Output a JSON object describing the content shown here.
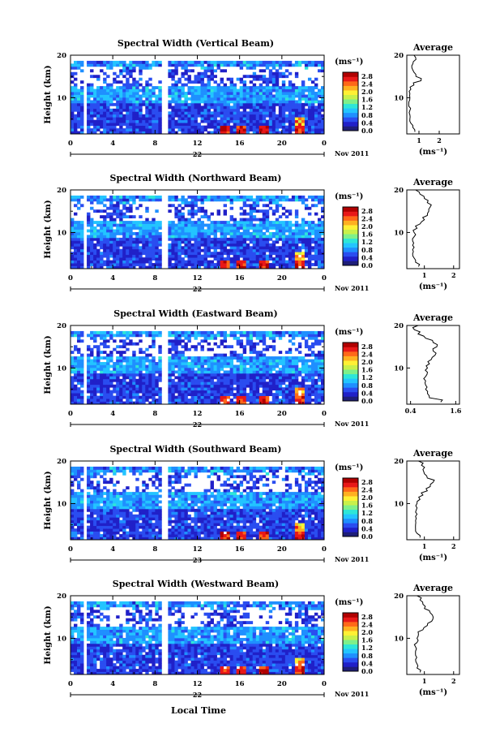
{
  "figure": {
    "month_label": "Nov 2011",
    "xlabel": "Local Time",
    "colorbar_unit": "(ms⁻¹)",
    "colorbar_ticks": [
      "2.8",
      "2.4",
      "2.0",
      "1.6",
      "1.2",
      "0.8",
      "0.4",
      "0.0"
    ],
    "colorbar_colors": [
      "#1e1e78",
      "#2020c8",
      "#2a4df0",
      "#1f8fff",
      "#23c4ff",
      "#2ee6d8",
      "#7ef08a",
      "#c8f04a",
      "#fff034",
      "#ffb020",
      "#ff6818",
      "#e81818",
      "#b00000"
    ]
  },
  "chart_data": [
    {
      "type": "heatmap",
      "title": "Spectral Width (Vertical Beam)",
      "ylabel": "Height (km)",
      "x_ticks": [
        "0",
        "4",
        "8",
        "12",
        "16",
        "20",
        "0"
      ],
      "y_ticks": [
        "20",
        "10"
      ],
      "date_label": "22",
      "xlim": [
        0,
        24
      ],
      "ylim": [
        1.5,
        20
      ],
      "colorbar_range": [
        0.0,
        3.0
      ],
      "average_profile": {
        "title": "Average",
        "xlabel": "(ms⁻¹)",
        "x_ticks": [
          "1",
          "2"
        ],
        "y_ticks": [
          "20",
          "10"
        ],
        "xlim": [
          0.4,
          3.0
        ],
        "height": [
          2,
          3,
          4,
          5,
          6,
          7,
          8,
          9,
          10,
          11,
          12,
          13,
          14,
          15,
          16,
          17,
          18,
          19,
          20
        ],
        "value": [
          0.8,
          0.7,
          0.6,
          0.55,
          0.55,
          0.55,
          0.5,
          0.5,
          0.55,
          0.55,
          0.6,
          0.75,
          1.1,
          0.85,
          0.75,
          0.65,
          0.7,
          0.85,
          0.75
        ]
      }
    },
    {
      "type": "heatmap",
      "title": "Spectral Width (Northward Beam)",
      "ylabel": "Height (km)",
      "x_ticks": [
        "0",
        "4",
        "8",
        "12",
        "16",
        "20",
        "0"
      ],
      "y_ticks": [
        "20",
        "10"
      ],
      "date_label": "22",
      "xlim": [
        0,
        24
      ],
      "ylim": [
        1.5,
        20
      ],
      "colorbar_range": [
        0.0,
        3.0
      ],
      "average_profile": {
        "title": "Average",
        "xlabel": "(ms⁻¹)",
        "x_ticks": [
          "1",
          "2"
        ],
        "y_ticks": [
          "20",
          "10"
        ],
        "xlim": [
          0.4,
          2.2
        ],
        "height": [
          2,
          3,
          4,
          5,
          6,
          7,
          8,
          9,
          10,
          11,
          12,
          13,
          14,
          15,
          16,
          17,
          18,
          19,
          20
        ],
        "value": [
          0.8,
          0.7,
          0.65,
          0.6,
          0.6,
          0.6,
          0.6,
          0.65,
          0.65,
          0.75,
          0.85,
          1.0,
          1.1,
          1.15,
          1.2,
          1.1,
          1.0,
          0.85,
          0.7
        ]
      }
    },
    {
      "type": "heatmap",
      "title": "Spectral Width (Eastward Beam)",
      "ylabel": "Height (km)",
      "x_ticks": [
        "0",
        "4",
        "8",
        "12",
        "16",
        "20",
        "0"
      ],
      "y_ticks": [
        "20",
        "10"
      ],
      "date_label": "22",
      "xlim": [
        0,
        24
      ],
      "ylim": [
        1.5,
        20
      ],
      "colorbar_range": [
        0.0,
        3.0
      ],
      "average_profile": {
        "title": "Average",
        "xlabel": "",
        "x_ticks": [
          "0.4",
          "1.6"
        ],
        "y_ticks": [
          "20",
          "10"
        ],
        "xlim": [
          0.3,
          1.7
        ],
        "height": [
          2,
          3,
          4,
          5,
          6,
          7,
          8,
          9,
          10,
          11,
          12,
          13,
          14,
          15,
          16,
          17,
          18,
          19,
          20
        ],
        "value": [
          1.2,
          0.9,
          0.85,
          0.8,
          0.8,
          0.8,
          0.8,
          0.85,
          0.85,
          0.9,
          0.95,
          1.05,
          1.0,
          1.1,
          1.0,
          0.8,
          0.6,
          0.5,
          0.6
        ]
      }
    },
    {
      "type": "heatmap",
      "title": "Spectral Width (Southward Beam)",
      "ylabel": "Height (km)",
      "x_ticks": [
        "0",
        "4",
        "8",
        "12",
        "16",
        "20",
        "0"
      ],
      "y_ticks": [
        "20",
        "10"
      ],
      "date_label": "23",
      "xlim": [
        0,
        24
      ],
      "ylim": [
        1.5,
        20
      ],
      "colorbar_range": [
        0.0,
        3.0
      ],
      "average_profile": {
        "title": "Average",
        "xlabel": "(ms⁻¹)",
        "x_ticks": [
          "1",
          "2"
        ],
        "y_ticks": [
          "20",
          "10"
        ],
        "xlim": [
          0.4,
          2.2
        ],
        "height": [
          2,
          3,
          4,
          5,
          6,
          7,
          8,
          9,
          10,
          11,
          12,
          13,
          14,
          15,
          16,
          17,
          18,
          19,
          20
        ],
        "value": [
          0.85,
          0.75,
          0.7,
          0.7,
          0.7,
          0.7,
          0.7,
          0.75,
          0.75,
          0.85,
          0.95,
          1.1,
          1.2,
          1.3,
          1.1,
          1.0,
          0.95,
          0.9,
          0.8
        ]
      }
    },
    {
      "type": "heatmap",
      "title": "Spectral Width (Westward Beam)",
      "ylabel": "Height (km)",
      "x_ticks": [
        "0",
        "4",
        "8",
        "12",
        "16",
        "20",
        "0"
      ],
      "y_ticks": [
        "20",
        "10"
      ],
      "date_label": "22",
      "xlim": [
        0,
        24
      ],
      "ylim": [
        1.5,
        20
      ],
      "colorbar_range": [
        0.0,
        3.0
      ],
      "average_profile": {
        "title": "Average",
        "xlabel": "(ms⁻¹)",
        "x_ticks": [
          "1",
          "2"
        ],
        "y_ticks": [
          "20",
          "10"
        ],
        "xlim": [
          0.4,
          2.2
        ],
        "height": [
          2,
          3,
          4,
          5,
          6,
          7,
          8,
          9,
          10,
          11,
          12,
          13,
          14,
          15,
          16,
          17,
          18,
          19,
          20
        ],
        "value": [
          0.85,
          0.75,
          0.75,
          0.7,
          0.7,
          0.7,
          0.7,
          0.75,
          0.75,
          0.8,
          0.95,
          1.1,
          1.25,
          1.3,
          1.2,
          1.0,
          0.95,
          0.85,
          0.75
        ]
      }
    }
  ]
}
